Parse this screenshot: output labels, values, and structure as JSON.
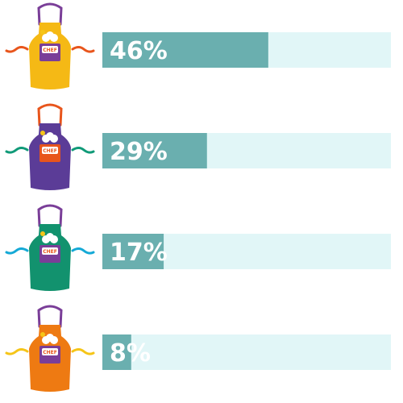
{
  "chart_data": {
    "type": "bar",
    "orientation": "horizontal",
    "categories": [
      "yellow apron",
      "purple apron",
      "green apron",
      "orange apron"
    ],
    "values": [
      46,
      29,
      17,
      8
    ],
    "value_labels": [
      "46%",
      "29%",
      "17%",
      "8%"
    ],
    "xlim": [
      0,
      80
    ],
    "title": "",
    "xlabel": "",
    "ylabel": "",
    "grid": false,
    "legend": "none",
    "colors": {
      "bar_fill": "#6aafaf",
      "bar_track": "#e1f6f7",
      "label_text": "#ffffff"
    },
    "icons": [
      {
        "name": "yellow-apron-icon",
        "body": "#f5b915",
        "strap": "#7a3e98",
        "tie": "#e8551c",
        "pocket": "#7a3e98"
      },
      {
        "name": "purple-apron-icon",
        "body": "#5b3c97",
        "strap": "#e8551c",
        "tie": "#109a78",
        "pocket": "#e8551c"
      },
      {
        "name": "green-apron-icon",
        "body": "#12926e",
        "strap": "#7a3e98",
        "tie": "#14a9d6",
        "pocket": "#7a3e98"
      },
      {
        "name": "orange-apron-icon",
        "body": "#ee7a12",
        "strap": "#7a3e98",
        "tie": "#f5c518",
        "pocket": "#7a3e98"
      }
    ],
    "logo_text": "CHEF"
  }
}
